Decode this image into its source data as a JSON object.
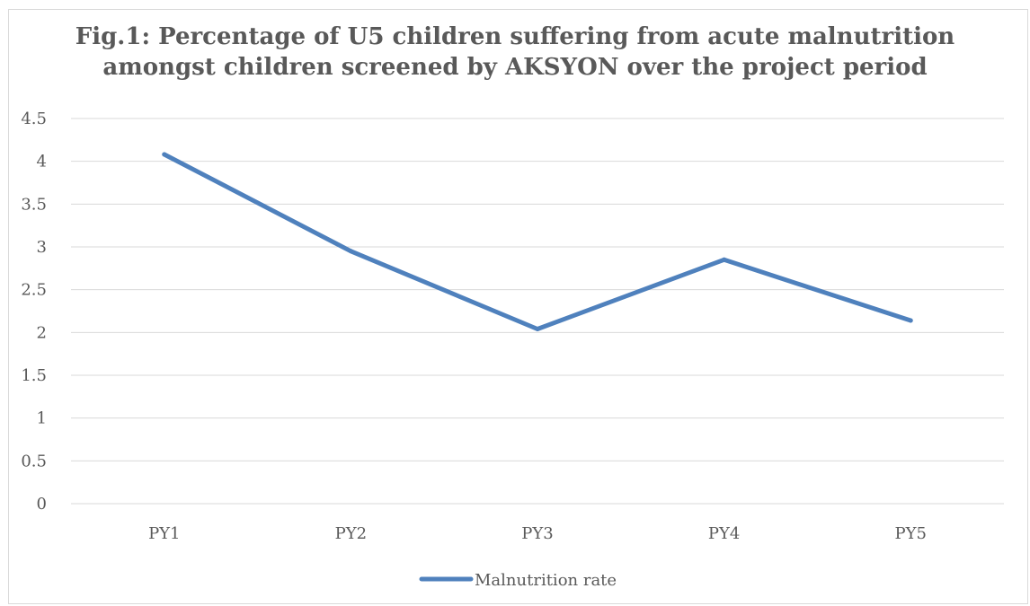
{
  "chart_data": {
    "type": "line",
    "title_line1": "Fig.1: Percentage of U5 children suffering from acute malnutrition",
    "title_line2": "amongst children screened by AKSYON over the project period",
    "categories": [
      "PY1",
      "PY2",
      "PY3",
      "PY4",
      "PY5"
    ],
    "series": [
      {
        "name": "Malnutrition rate",
        "values": [
          4.08,
          2.95,
          2.04,
          2.85,
          2.14
        ]
      }
    ],
    "ylim": [
      0,
      4.5
    ],
    "yticks": [
      "0",
      "0.5",
      "1",
      "1.5",
      "2",
      "2.5",
      "3",
      "3.5",
      "4",
      "4.5"
    ],
    "grid": true,
    "legend": "bottom",
    "xlabel": "",
    "ylabel": "",
    "colors": {
      "line": "#4f81bd",
      "grid": "#d9d9d9",
      "text": "#595959"
    }
  }
}
